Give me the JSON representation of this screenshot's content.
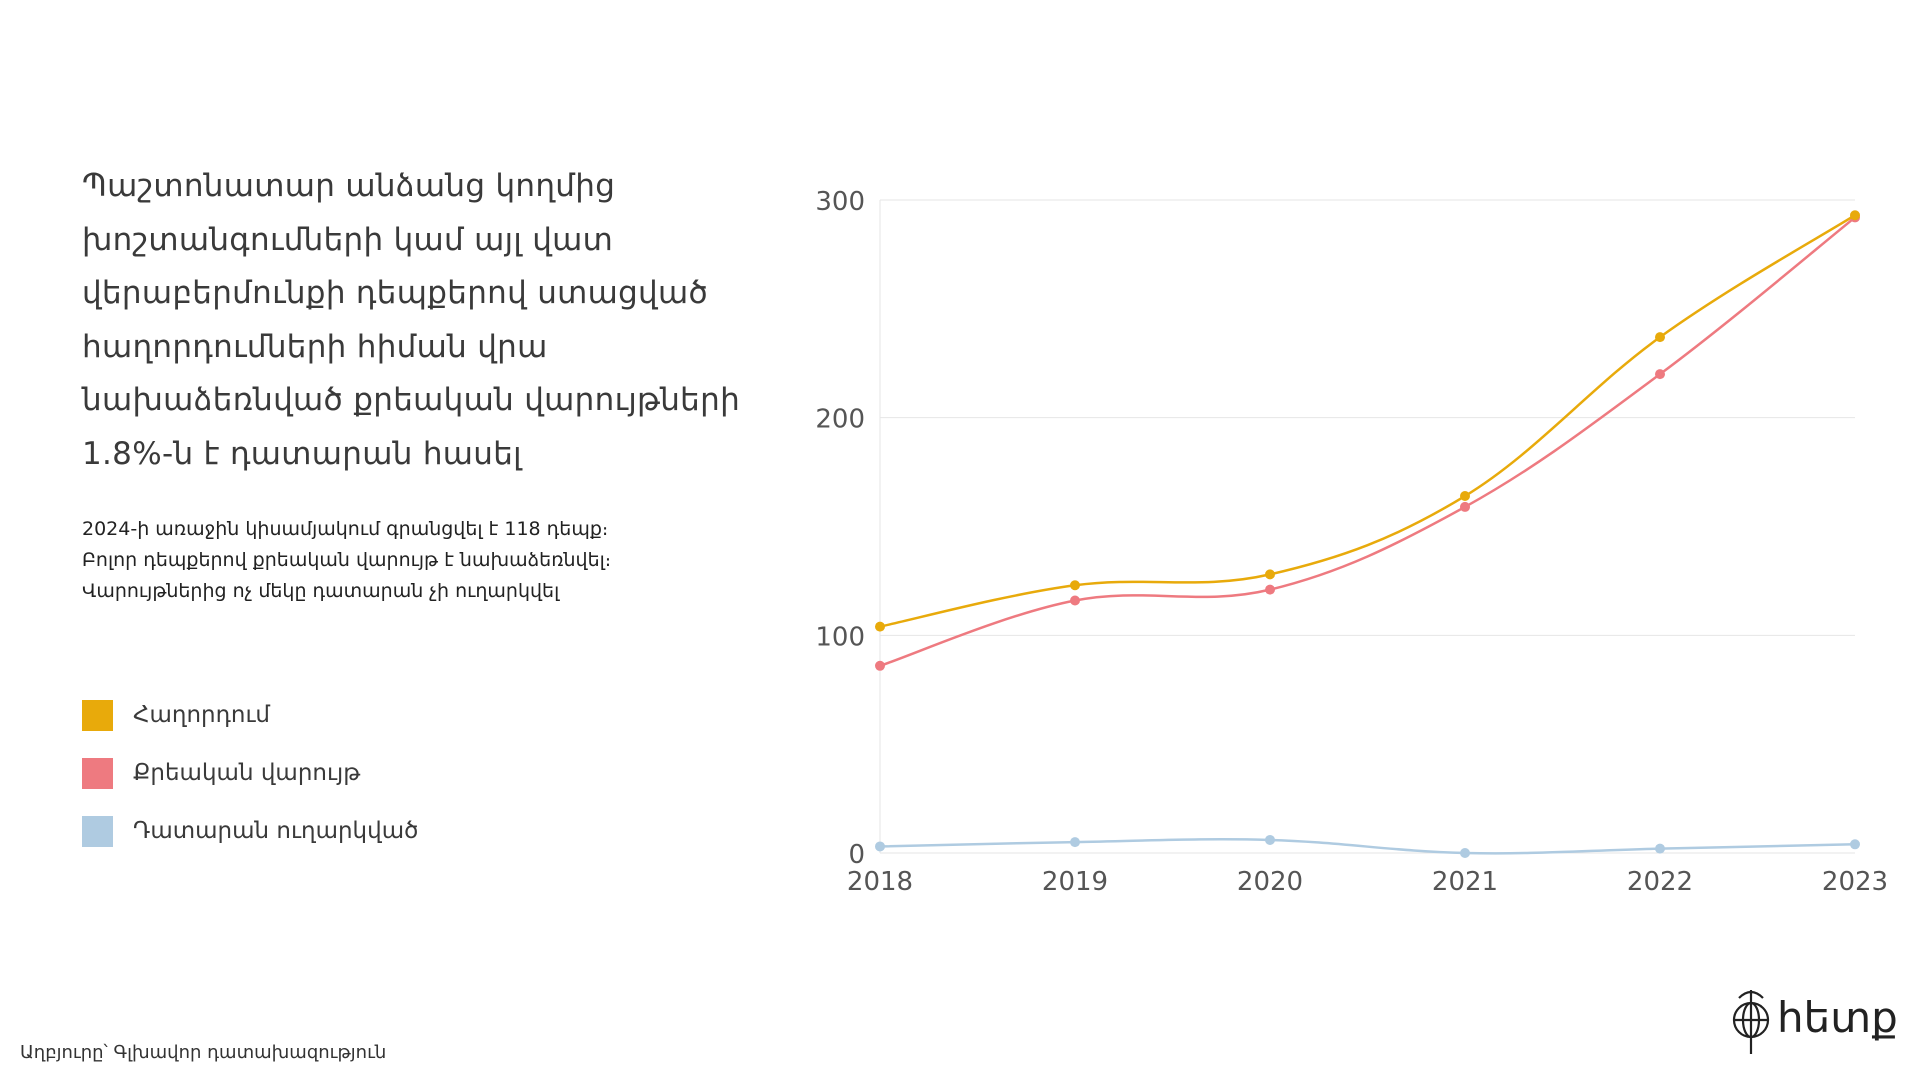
{
  "headline": "Պաշտոնատար անձանց կողմից խոշտանգումների կամ այլ վատ վերաբերմունքի դեպքերով ստացված հաղորդումների հիման վրա նախաձեռնված քրեական վարույթների 1.8%-ն է դատարան հասել",
  "subtitle_lines": [
    "2024-ի առաջին կիսամյակում գրանցվել է 118 դեպք։",
    "Բոլոր դեպքերով քրեական վարույթ է նախաձեռնվել։",
    "Վարույթներից ոչ մեկը դատարան չի ուղարկվել"
  ],
  "source": "Աղբյուրը՝ Գլխավոր դատախազություն",
  "logo_text": "հետք",
  "chart_data": {
    "type": "line",
    "title": "",
    "xlabel": "",
    "ylabel": "",
    "x": [
      "2018",
      "2019",
      "2020",
      "2021",
      "2022",
      "2023"
    ],
    "yticks": [
      "0",
      "100",
      "200",
      "300"
    ],
    "ylim": [
      0,
      300
    ],
    "grid": true,
    "series": [
      {
        "name": "Հաղորդում",
        "color": "#E8AA0B",
        "values": [
          104,
          123,
          128,
          164,
          237,
          293
        ]
      },
      {
        "name": "Քրեական վարույթ",
        "color": "#EE7A80",
        "values": [
          86,
          116,
          121,
          159,
          220,
          292
        ]
      },
      {
        "name": "Դատարան ուղարկված",
        "color": "#AFCBE1",
        "values": [
          3,
          5,
          6,
          0,
          2,
          4
        ]
      }
    ]
  }
}
